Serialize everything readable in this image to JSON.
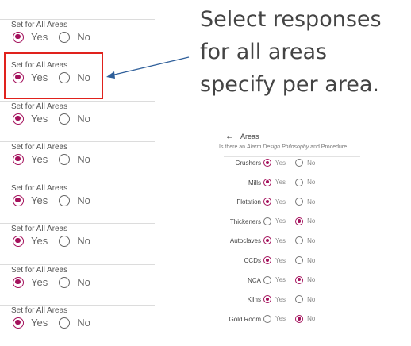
{
  "set_all_areas": {
    "label": "Set for All Areas",
    "yes": "Yes",
    "no": "No",
    "blocks": [
      {
        "selected": "yes"
      },
      {
        "selected": "yes"
      },
      {
        "selected": "yes"
      },
      {
        "selected": "yes"
      },
      {
        "selected": "yes"
      },
      {
        "selected": "yes"
      },
      {
        "selected": "yes"
      },
      {
        "selected": "yes"
      }
    ]
  },
  "callout": {
    "lines": [
      "Select responses",
      "for all areas",
      "specify per area."
    ]
  },
  "areas_panel": {
    "title": "Areas",
    "back_icon": "arrow-left-icon",
    "question_prefix": "Is there an ",
    "question_emphasis": "Alarm Design Philosophy",
    "question_suffix": " and Procedure",
    "yes": "Yes",
    "no": "No",
    "rows": [
      {
        "name": "Crushers",
        "selected": "yes"
      },
      {
        "name": "Mills",
        "selected": "yes"
      },
      {
        "name": "Flotation",
        "selected": "yes"
      },
      {
        "name": "Thickeners",
        "selected": "no"
      },
      {
        "name": "Autoclaves",
        "selected": "yes"
      },
      {
        "name": "CCDs",
        "selected": "yes"
      },
      {
        "name": "NCA",
        "selected": "no"
      },
      {
        "name": "Kilns",
        "selected": "yes"
      },
      {
        "name": "Gold Room",
        "selected": "no"
      }
    ]
  },
  "colors": {
    "accent": "#a4115c",
    "highlight": "#e0221d",
    "arrow": "#2f5f9a"
  }
}
